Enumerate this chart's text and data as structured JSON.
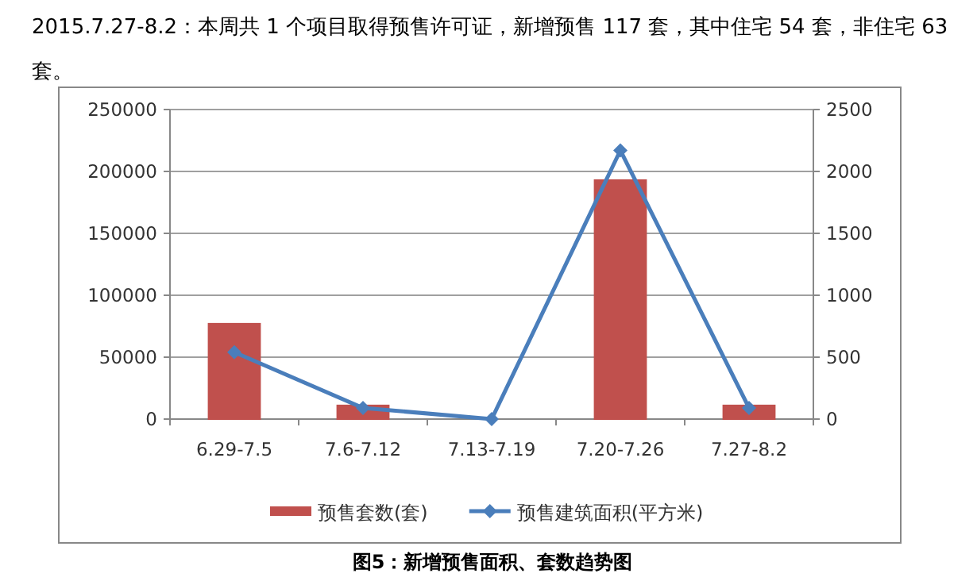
{
  "chart_data": {
    "type": "bar",
    "title": "图5：新增预售面积、套数趋势图",
    "annotations": [
      "2015.7.27-8.2：本周共 1 个项目取得预售许可证，新增预售 117 套，其中住宅 54 套，非住宅 63 套。"
    ],
    "categories": [
      "6.29-7.5",
      "7.6-7.12",
      "7.13-7.19",
      "7.20-7.26",
      "7.27-8.2"
    ],
    "series": [
      {
        "name": "预售套数(套)",
        "color": "#c0504d",
        "values": [
          77000,
          11000,
          0,
          193000,
          11000
        ]
      },
      {
        "name": "预售建筑面积(平方米)",
        "type": "line",
        "axis": "y2",
        "color": "#4a7ebb",
        "marker": "diamond",
        "values": [
          540,
          90,
          0,
          2170,
          90
        ]
      }
    ],
    "ylim": [
      0,
      250000
    ],
    "yticks": [
      0,
      50000,
      100000,
      150000,
      200000,
      250000
    ],
    "y2lim": [
      0,
      2500
    ],
    "y2ticks": [
      0,
      500,
      1000,
      1500,
      2000,
      2500
    ],
    "grid": "y",
    "legend": "bottom"
  }
}
